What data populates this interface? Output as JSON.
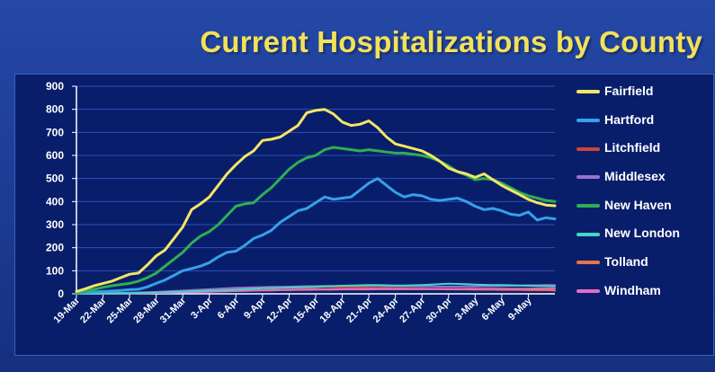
{
  "title": "Current Hospitalizations by County",
  "legend": [
    "Fairfield",
    "Hartford",
    "Litchfield",
    "Middlesex",
    "New Haven",
    "New London",
    "Tolland",
    "Windham"
  ],
  "chart_data": {
    "type": "line",
    "title": "Current Hospitalizations by County",
    "xlabel": "",
    "ylabel": "",
    "ylim": [
      0,
      900
    ],
    "yticks": [
      0,
      100,
      200,
      300,
      400,
      500,
      600,
      700,
      800,
      900
    ],
    "grid": true,
    "legend_position": "right",
    "x_ticks": [
      "19-Mar",
      "22-Mar",
      "25-Mar",
      "28-Mar",
      "31-Mar",
      "3-Apr",
      "6-Apr",
      "9-Apr",
      "12-Apr",
      "15-Apr",
      "18-Apr",
      "21-Apr",
      "24-Apr",
      "27-Apr",
      "30-Apr",
      "3-May",
      "6-May",
      "9-May"
    ],
    "x": [
      "19-Mar",
      "20-Mar",
      "21-Mar",
      "22-Mar",
      "23-Mar",
      "24-Mar",
      "25-Mar",
      "26-Mar",
      "27-Mar",
      "28-Mar",
      "29-Mar",
      "30-Mar",
      "31-Mar",
      "1-Apr",
      "2-Apr",
      "3-Apr",
      "4-Apr",
      "5-Apr",
      "6-Apr",
      "7-Apr",
      "8-Apr",
      "9-Apr",
      "10-Apr",
      "11-Apr",
      "12-Apr",
      "13-Apr",
      "14-Apr",
      "15-Apr",
      "16-Apr",
      "17-Apr",
      "18-Apr",
      "19-Apr",
      "20-Apr",
      "21-Apr",
      "22-Apr",
      "23-Apr",
      "24-Apr",
      "25-Apr",
      "26-Apr",
      "27-Apr",
      "28-Apr",
      "29-Apr",
      "30-Apr",
      "1-May",
      "2-May",
      "3-May",
      "4-May",
      "5-May",
      "6-May",
      "7-May",
      "8-May",
      "9-May",
      "10-May",
      "11-May",
      "12-May"
    ],
    "series": [
      {
        "name": "Fairfield",
        "color": "#f5e663",
        "width": 3,
        "values": [
          10,
          22,
          35,
          45,
          55,
          70,
          85,
          90,
          125,
          165,
          190,
          240,
          290,
          365,
          390,
          420,
          470,
          520,
          560,
          595,
          620,
          665,
          670,
          680,
          705,
          730,
          785,
          795,
          800,
          780,
          745,
          730,
          735,
          750,
          720,
          680,
          650,
          640,
          630,
          620,
          600,
          575,
          545,
          530,
          520,
          505,
          520,
          495,
          470,
          450,
          430,
          410,
          395,
          385,
          382
        ]
      },
      {
        "name": "Hartford",
        "color": "#36a0e8",
        "width": 3,
        "values": [
          3,
          6,
          8,
          10,
          12,
          15,
          18,
          20,
          30,
          45,
          60,
          80,
          100,
          110,
          120,
          135,
          160,
          180,
          185,
          210,
          240,
          255,
          275,
          310,
          335,
          360,
          370,
          395,
          420,
          410,
          415,
          420,
          450,
          480,
          500,
          470,
          440,
          420,
          430,
          425,
          410,
          405,
          410,
          415,
          400,
          380,
          365,
          370,
          360,
          345,
          340,
          355,
          320,
          330,
          325
        ]
      },
      {
        "name": "Litchfield",
        "color": "#c9453a",
        "width": 2,
        "values": [
          0,
          0,
          1,
          1,
          2,
          2,
          3,
          4,
          5,
          6,
          8,
          10,
          12,
          14,
          15,
          16,
          18,
          20,
          22,
          24,
          25,
          26,
          28,
          28,
          27,
          26,
          27,
          28,
          30,
          30,
          29,
          28,
          27,
          26,
          25,
          25,
          24,
          24,
          23,
          23,
          22,
          22,
          21,
          21,
          20,
          20,
          19,
          19,
          18,
          18,
          17,
          17,
          16,
          16,
          15
        ]
      },
      {
        "name": "Middlesex",
        "color": "#9b6fd0",
        "width": 2,
        "values": [
          0,
          1,
          1,
          2,
          3,
          4,
          5,
          6,
          7,
          8,
          10,
          12,
          14,
          16,
          18,
          20,
          22,
          24,
          26,
          27,
          28,
          29,
          30,
          30,
          31,
          32,
          33,
          33,
          34,
          34,
          35,
          35,
          34,
          34,
          34,
          33,
          33,
          33,
          32,
          32,
          32,
          31,
          31,
          31,
          32,
          32,
          33,
          33,
          34,
          35,
          36,
          37,
          37,
          38,
          38
        ]
      },
      {
        "name": "New Haven",
        "color": "#2fae52",
        "width": 3,
        "values": [
          5,
          12,
          20,
          28,
          35,
          40,
          45,
          55,
          70,
          90,
          120,
          150,
          180,
          220,
          250,
          270,
          300,
          340,
          380,
          390,
          395,
          430,
          460,
          500,
          540,
          570,
          590,
          600,
          625,
          635,
          630,
          625,
          620,
          625,
          620,
          615,
          610,
          610,
          605,
          600,
          590,
          575,
          555,
          530,
          515,
          495,
          500,
          495,
          480,
          460,
          440,
          425,
          415,
          405,
          400
        ]
      },
      {
        "name": "New London",
        "color": "#47d6c5",
        "width": 2,
        "values": [
          0,
          1,
          1,
          2,
          2,
          3,
          3,
          4,
          5,
          6,
          7,
          8,
          9,
          10,
          12,
          14,
          15,
          16,
          18,
          20,
          22,
          24,
          25,
          26,
          27,
          28,
          29,
          30,
          32,
          33,
          35,
          36,
          37,
          38,
          38,
          37,
          36,
          36,
          37,
          38,
          40,
          42,
          44,
          43,
          42,
          40,
          39,
          38,
          38,
          37,
          36,
          35,
          34,
          33,
          32
        ]
      },
      {
        "name": "Tolland",
        "color": "#e8724a",
        "width": 2,
        "values": [
          0,
          0,
          0,
          1,
          1,
          2,
          2,
          3,
          3,
          4,
          5,
          6,
          7,
          8,
          9,
          10,
          11,
          12,
          13,
          14,
          15,
          16,
          17,
          18,
          18,
          19,
          19,
          20,
          20,
          21,
          21,
          21,
          21,
          22,
          22,
          22,
          21,
          21,
          21,
          20,
          20,
          20,
          19,
          19,
          19,
          18,
          18,
          18,
          17,
          17,
          17,
          16,
          16,
          16,
          15
        ]
      },
      {
        "name": "Windham",
        "color": "#e26ec7",
        "width": 2,
        "values": [
          0,
          0,
          1,
          1,
          1,
          2,
          2,
          3,
          3,
          4,
          4,
          5,
          6,
          7,
          8,
          9,
          10,
          11,
          12,
          13,
          14,
          15,
          15,
          16,
          16,
          17,
          17,
          18,
          18,
          18,
          19,
          19,
          19,
          19,
          20,
          20,
          20,
          20,
          20,
          21,
          21,
          21,
          21,
          21,
          22,
          22,
          22,
          22,
          22,
          22,
          22,
          22,
          23,
          23,
          23
        ]
      }
    ]
  }
}
